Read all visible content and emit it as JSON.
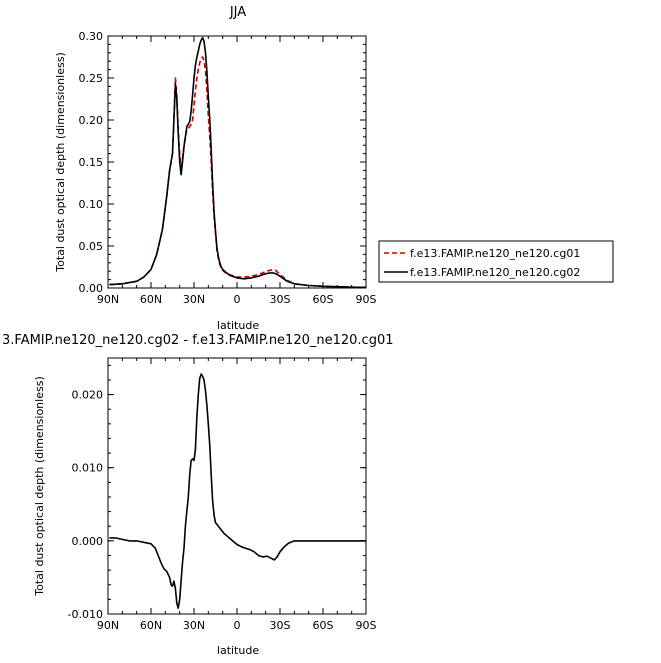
{
  "chart_data": [
    {
      "type": "line",
      "title": "JJA",
      "xlabel": "latitude",
      "ylabel": "Total dust optical depth (dimensionless)",
      "xlim": [
        90,
        -90
      ],
      "ylim": [
        0,
        0.3
      ],
      "xticks": [
        90,
        60,
        30,
        0,
        -30,
        -60,
        -90
      ],
      "xtick_labels": [
        "90N",
        "60N",
        "30N",
        "0",
        "30S",
        "60S",
        "90S"
      ],
      "yticks": [
        0,
        0.05,
        0.1,
        0.15,
        0.2,
        0.25,
        0.3
      ],
      "ytick_labels": [
        "0.00",
        "0.05",
        "0.10",
        "0.15",
        "0.20",
        "0.25",
        "0.30"
      ],
      "legend_position": "right",
      "grid": false,
      "series": [
        {
          "name": "f.e13.FAMIP.ne120_ne120.cg01",
          "color": "#cc0000",
          "dash": "dashed",
          "points": [
            [
              89,
              0.004
            ],
            [
              80,
              0.005
            ],
            [
              70,
              0.008
            ],
            [
              65,
              0.013
            ],
            [
              60,
              0.022
            ],
            [
              56,
              0.04
            ],
            [
              52,
              0.07
            ],
            [
              49,
              0.11
            ],
            [
              47,
              0.14
            ],
            [
              45,
              0.16
            ],
            [
              44,
              0.2
            ],
            [
              43,
              0.25
            ],
            [
              42,
              0.23
            ],
            [
              41,
              0.19
            ],
            [
              40,
              0.16
            ],
            [
              39,
              0.14
            ],
            [
              38,
              0.155
            ],
            [
              37,
              0.17
            ],
            [
              36,
              0.18
            ],
            [
              35,
              0.188
            ],
            [
              34,
              0.19
            ],
            [
              33,
              0.192
            ],
            [
              32,
              0.195
            ],
            [
              31,
              0.2
            ],
            [
              30,
              0.218
            ],
            [
              29,
              0.235
            ],
            [
              28,
              0.25
            ],
            [
              27,
              0.26
            ],
            [
              26,
              0.268
            ],
            [
              25,
              0.273
            ],
            [
              24,
              0.275
            ],
            [
              23,
              0.271
            ],
            [
              22,
              0.258
            ],
            [
              21,
              0.235
            ],
            [
              20,
              0.205
            ],
            [
              19,
              0.18
            ],
            [
              18,
              0.15
            ],
            [
              17,
              0.115
            ],
            [
              16,
              0.085
            ],
            [
              15,
              0.065
            ],
            [
              14,
              0.045
            ],
            [
              13,
              0.035
            ],
            [
              12,
              0.028
            ],
            [
              11,
              0.024
            ],
            [
              10,
              0.021
            ],
            [
              8,
              0.018
            ],
            [
              5,
              0.016
            ],
            [
              0,
              0.013
            ],
            [
              -5,
              0.013
            ],
            [
              -10,
              0.014
            ],
            [
              -15,
              0.016
            ],
            [
              -18,
              0.018
            ],
            [
              -20,
              0.02
            ],
            [
              -23,
              0.021
            ],
            [
              -25,
              0.022
            ],
            [
              -27,
              0.021
            ],
            [
              -30,
              0.016
            ],
            [
              -35,
              0.009
            ],
            [
              -40,
              0.005
            ],
            [
              -50,
              0.003
            ],
            [
              -60,
              0.002
            ],
            [
              -70,
              0.0015
            ],
            [
              -80,
              0.001
            ],
            [
              -90,
              0.0008
            ]
          ]
        },
        {
          "name": "f.e13.FAMIP.ne120_ne120.cg02",
          "color": "#000000",
          "dash": "solid",
          "points": [
            [
              89,
              0.004
            ],
            [
              80,
              0.005
            ],
            [
              70,
              0.008
            ],
            [
              65,
              0.013
            ],
            [
              60,
              0.022
            ],
            [
              56,
              0.04
            ],
            [
              52,
              0.07
            ],
            [
              49,
              0.11
            ],
            [
              47,
              0.14
            ],
            [
              45,
              0.16
            ],
            [
              44,
              0.2
            ],
            [
              43,
              0.243
            ],
            [
              42,
              0.225
            ],
            [
              41,
              0.185
            ],
            [
              40,
              0.15
            ],
            [
              39,
              0.135
            ],
            [
              38,
              0.15
            ],
            [
              37,
              0.168
            ],
            [
              36,
              0.18
            ],
            [
              35,
              0.192
            ],
            [
              34,
              0.195
            ],
            [
              33,
              0.198
            ],
            [
              32,
              0.21
            ],
            [
              31,
              0.23
            ],
            [
              30,
              0.25
            ],
            [
              29,
              0.265
            ],
            [
              28,
              0.275
            ],
            [
              27,
              0.282
            ],
            [
              26,
              0.29
            ],
            [
              25,
              0.295
            ],
            [
              24,
              0.298
            ],
            [
              23,
              0.294
            ],
            [
              22,
              0.28
            ],
            [
              21,
              0.258
            ],
            [
              20,
              0.228
            ],
            [
              19,
              0.2
            ],
            [
              18,
              0.165
            ],
            [
              17,
              0.125
            ],
            [
              16,
              0.09
            ],
            [
              15,
              0.068
            ],
            [
              14,
              0.048
            ],
            [
              13,
              0.037
            ],
            [
              12,
              0.03
            ],
            [
              11,
              0.025
            ],
            [
              10,
              0.022
            ],
            [
              8,
              0.019
            ],
            [
              5,
              0.015
            ],
            [
              0,
              0.012
            ],
            [
              -5,
              0.011
            ],
            [
              -10,
              0.012
            ],
            [
              -15,
              0.014
            ],
            [
              -18,
              0.016
            ],
            [
              -20,
              0.017
            ],
            [
              -23,
              0.018
            ],
            [
              -25,
              0.018
            ],
            [
              -27,
              0.017
            ],
            [
              -30,
              0.014
            ],
            [
              -35,
              0.008
            ],
            [
              -40,
              0.005
            ],
            [
              -50,
              0.003
            ],
            [
              -60,
              0.002
            ],
            [
              -70,
              0.0015
            ],
            [
              -80,
              0.001
            ],
            [
              -90,
              0.0008
            ]
          ]
        }
      ]
    },
    {
      "type": "line",
      "title": "3.FAMIP.ne120_ne120.cg02 - f.e13.FAMIP.ne120_ne120.cg01",
      "xlabel": "latitude",
      "ylabel": "Total dust optical depth (dimensionless)",
      "xlim": [
        90,
        -90
      ],
      "ylim": [
        -0.01,
        0.025
      ],
      "xticks": [
        90,
        60,
        30,
        0,
        -30,
        -60,
        -90
      ],
      "xtick_labels": [
        "90N",
        "60N",
        "30N",
        "0",
        "30S",
        "60S",
        "90S"
      ],
      "yticks": [
        -0.01,
        0.0,
        0.01,
        0.02
      ],
      "ytick_labels": [
        "-0.010",
        "0.000",
        "0.010",
        "0.020"
      ],
      "grid": false,
      "series": [
        {
          "color": "#000000",
          "dash": "solid",
          "points": [
            [
              89,
              0.0004
            ],
            [
              85,
              0.0004
            ],
            [
              80,
              0.0002
            ],
            [
              75,
              0.0
            ],
            [
              70,
              0.0
            ],
            [
              65,
              -0.0002
            ],
            [
              60,
              -0.0004
            ],
            [
              57,
              -0.001
            ],
            [
              55,
              -0.002
            ],
            [
              53,
              -0.003
            ],
            [
              51,
              -0.0038
            ],
            [
              49,
              -0.0042
            ],
            [
              47,
              -0.005
            ],
            [
              46,
              -0.006
            ],
            [
              45,
              -0.0062
            ],
            [
              44,
              -0.0055
            ],
            [
              43,
              -0.0065
            ],
            [
              42,
              -0.0085
            ],
            [
              41,
              -0.0092
            ],
            [
              40,
              -0.008
            ],
            [
              39,
              -0.0055
            ],
            [
              38,
              -0.003
            ],
            [
              37,
              -0.001
            ],
            [
              36,
              0.002
            ],
            [
              35,
              0.004
            ],
            [
              34,
              0.006
            ],
            [
              33,
              0.009
            ],
            [
              32,
              0.011
            ],
            [
              31,
              0.0112
            ],
            [
              30,
              0.011
            ],
            [
              29,
              0.0125
            ],
            [
              28,
              0.017
            ],
            [
              27,
              0.02
            ],
            [
              26,
              0.0222
            ],
            [
              25,
              0.0228
            ],
            [
              24,
              0.0225
            ],
            [
              23,
              0.022
            ],
            [
              22,
              0.0205
            ],
            [
              21,
              0.0185
            ],
            [
              20,
              0.016
            ],
            [
              19,
              0.013
            ],
            [
              18,
              0.009
            ],
            [
              17,
              0.0055
            ],
            [
              16,
              0.0035
            ],
            [
              15,
              0.0025
            ],
            [
              13,
              0.002
            ],
            [
              11,
              0.0015
            ],
            [
              9,
              0.001
            ],
            [
              6,
              0.0005
            ],
            [
              3,
              0.0
            ],
            [
              0,
              -0.0005
            ],
            [
              -3,
              -0.0008
            ],
            [
              -6,
              -0.001
            ],
            [
              -9,
              -0.0012
            ],
            [
              -12,
              -0.0015
            ],
            [
              -15,
              -0.002
            ],
            [
              -18,
              -0.0022
            ],
            [
              -21,
              -0.0021
            ],
            [
              -24,
              -0.0024
            ],
            [
              -26,
              -0.0026
            ],
            [
              -28,
              -0.0022
            ],
            [
              -30,
              -0.0015
            ],
            [
              -33,
              -0.0008
            ],
            [
              -36,
              -0.0003
            ],
            [
              -40,
              0.0
            ],
            [
              -50,
              0.0
            ],
            [
              -60,
              0.0
            ],
            [
              -70,
              0.0
            ],
            [
              -80,
              0.0
            ],
            [
              -90,
              0.0
            ]
          ]
        }
      ]
    }
  ]
}
